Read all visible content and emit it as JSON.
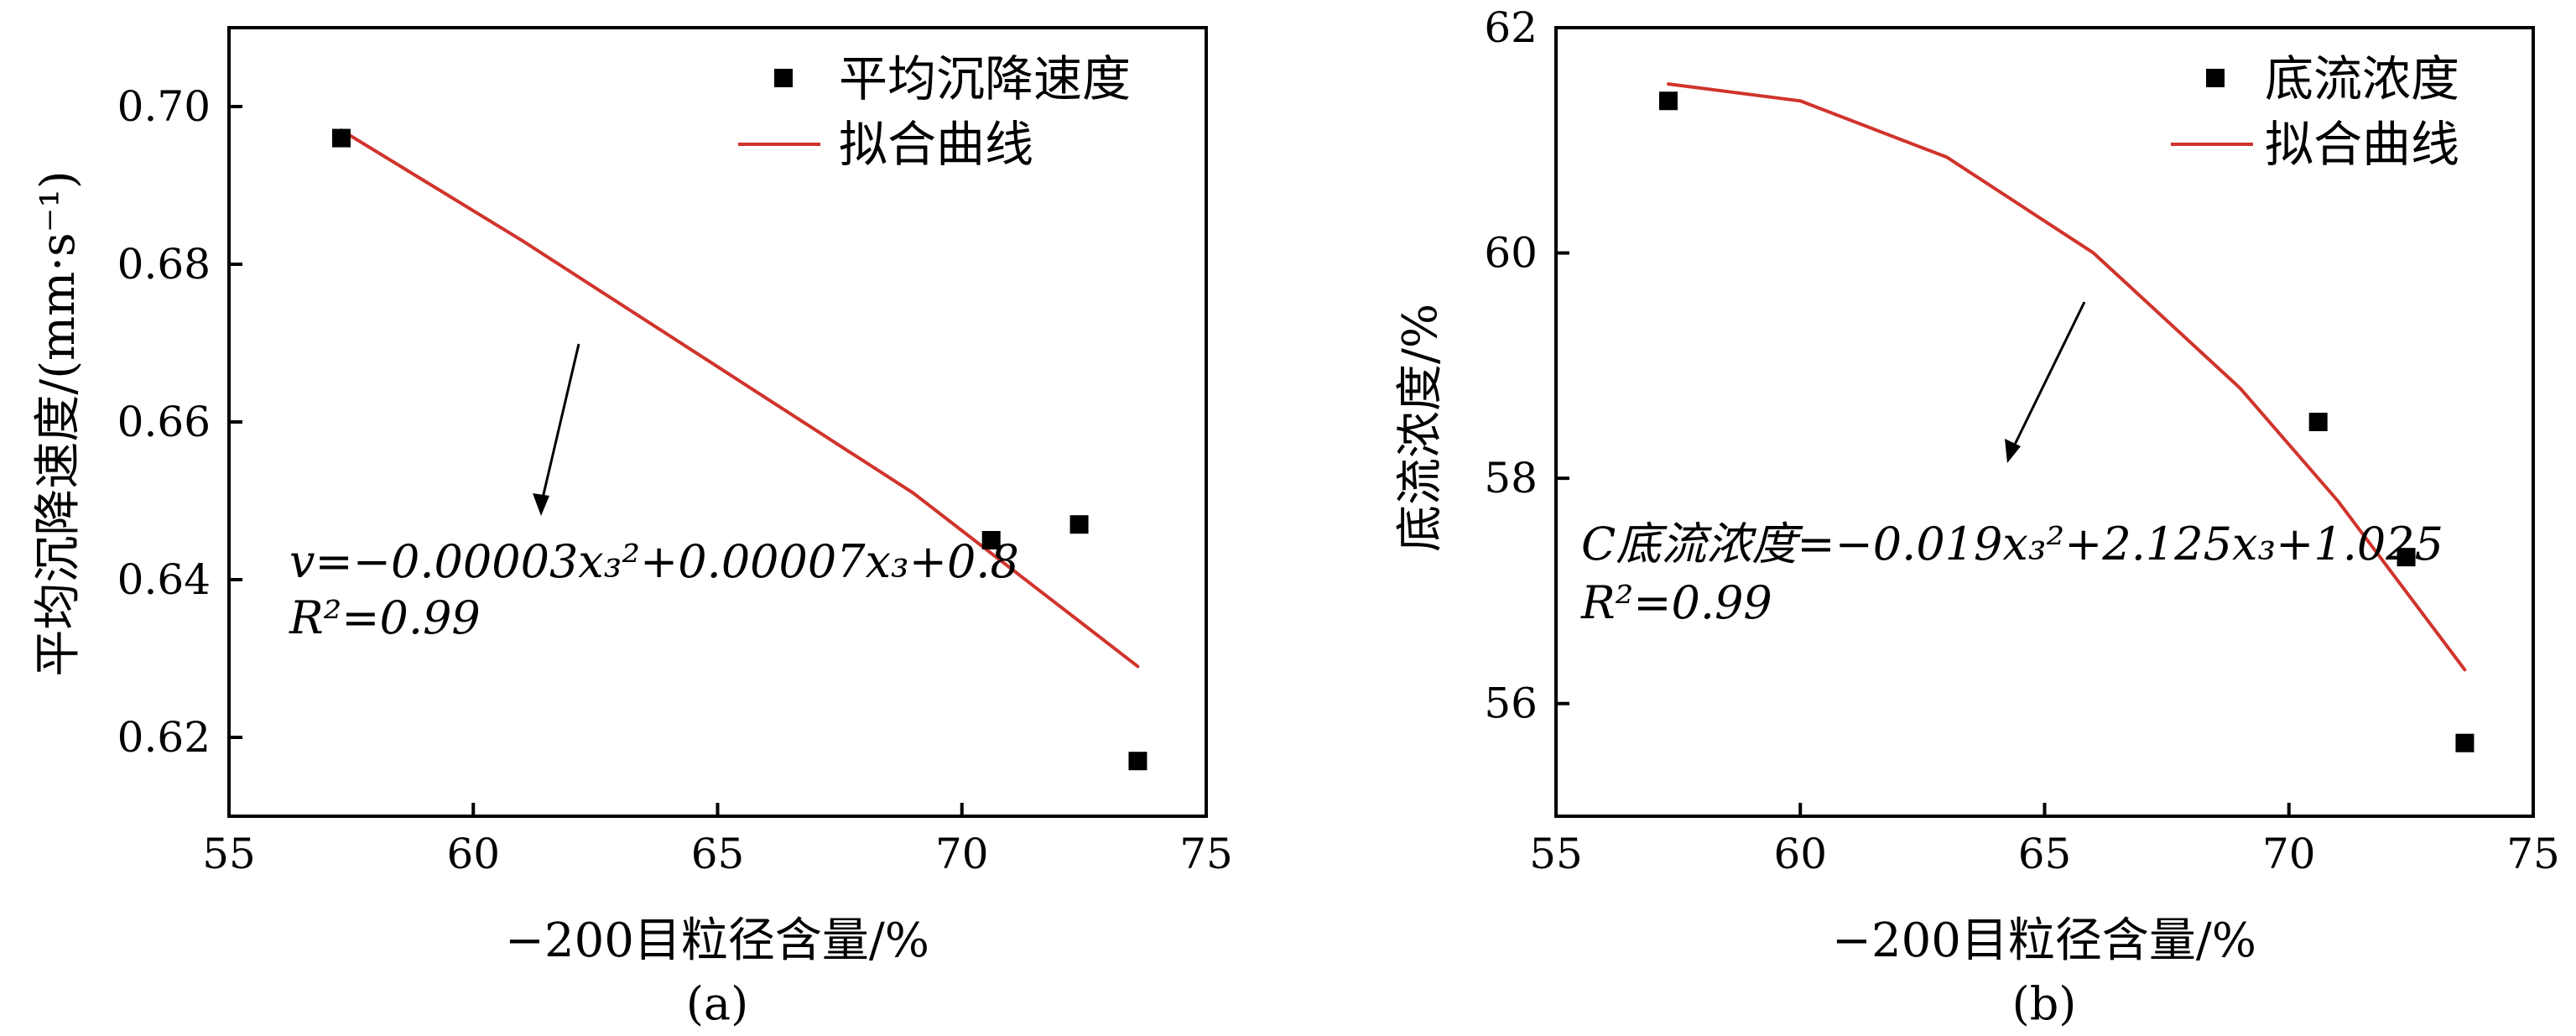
{
  "chart_data": [
    {
      "type": "scatter",
      "panel_label": "(a)",
      "xlabel": "−200目粒径含量/%",
      "ylabel": "平均沉降速度/(mm·s⁻¹)",
      "xlim": [
        55,
        75
      ],
      "ylim": [
        0.61,
        0.71
      ],
      "xticks": [
        55,
        60,
        65,
        70,
        75
      ],
      "yticks": [
        0.62,
        0.64,
        0.66,
        0.68,
        0.7
      ],
      "ytick_labels": [
        "0.62",
        "0.64",
        "0.66",
        "0.68",
        "0.70"
      ],
      "series": [
        {
          "name": "平均沉降速度",
          "kind": "scatter",
          "x": [
            57.3,
            70.6,
            72.4,
            73.6
          ],
          "y": [
            0.696,
            0.645,
            0.647,
            0.617
          ]
        },
        {
          "name": "拟合曲线",
          "kind": "line",
          "color": "#d0342c",
          "x": [
            57.3,
            61,
            65,
            69,
            73.6
          ],
          "y": [
            0.697,
            0.683,
            0.667,
            0.651,
            0.629
          ]
        }
      ],
      "legend_position": "top-right",
      "annotation": {
        "equation": "v=−0.00003x₃²+0.00007x₃+0.8",
        "r2": "R²=0.99"
      }
    },
    {
      "type": "scatter",
      "panel_label": "(b)",
      "xlabel": "−200目粒径含量/%",
      "ylabel": "底流浓度/%",
      "xlim": [
        55,
        75
      ],
      "ylim": [
        55,
        62
      ],
      "xticks": [
        55,
        60,
        65,
        70,
        75
      ],
      "yticks": [
        56,
        58,
        60,
        62
      ],
      "ytick_labels": [
        "56",
        "58",
        "60",
        "62"
      ],
      "series": [
        {
          "name": "底流浓度",
          "kind": "scatter",
          "x": [
            57.3,
            70.6,
            72.4,
            73.6
          ],
          "y": [
            61.35,
            58.5,
            57.3,
            55.65
          ]
        },
        {
          "name": "拟合曲线",
          "kind": "line",
          "color": "#d0342c",
          "x": [
            57.3,
            60,
            63,
            66,
            69,
            71,
            73.6
          ],
          "y": [
            61.5,
            61.35,
            60.85,
            60.0,
            58.8,
            57.8,
            56.3
          ]
        }
      ],
      "legend_position": "top-right",
      "annotation": {
        "equation": "C底流浓度=−0.019x₃²+2.125x₃+1.025",
        "r2": "R²=0.99"
      }
    }
  ]
}
